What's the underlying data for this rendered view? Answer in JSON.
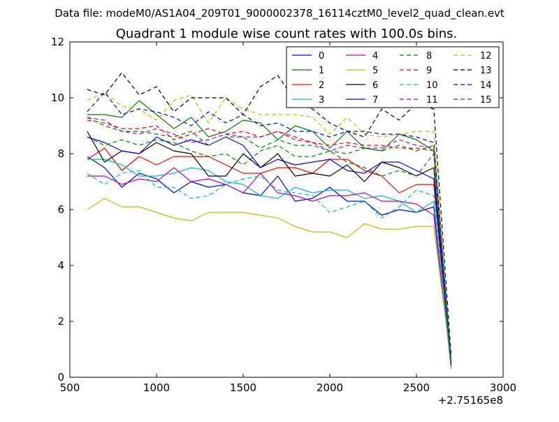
{
  "figure": {
    "suptitle": "Data file: modeM0/AS1A04_209T01_9000002378_16114cztM0_level2_quad_clean.evt",
    "offset_label": "+2.75165e8"
  },
  "chart_data": {
    "type": "line",
    "title": "Quadrant 1 module wise count rates with 100.0s bins.",
    "xlabel": "",
    "ylabel": "",
    "xlim": [
      500,
      3000
    ],
    "ylim": [
      0,
      12
    ],
    "x_ticks": [
      500,
      1000,
      1500,
      2000,
      2500,
      3000
    ],
    "y_ticks": [
      0,
      2,
      4,
      6,
      8,
      10,
      12
    ],
    "x_offset": "+2.75165e8",
    "grid": false,
    "legend_position": "top-right",
    "legend_columns": 4,
    "x": [
      600,
      700,
      800,
      900,
      1000,
      1100,
      1200,
      1300,
      1400,
      1500,
      1600,
      1700,
      1800,
      1900,
      2000,
      2100,
      2200,
      2300,
      2400,
      2500,
      2600,
      2700
    ],
    "series": [
      {
        "name": "0",
        "color": "#0000ff",
        "style": "solid",
        "values": [
          7.9,
          7.5,
          6.8,
          7.3,
          7.1,
          6.6,
          7.0,
          6.8,
          6.9,
          6.6,
          6.5,
          7.2,
          6.3,
          6.4,
          6.8,
          6.3,
          6.3,
          5.8,
          6.0,
          5.9,
          6.1,
          0.4
        ]
      },
      {
        "name": "1",
        "color": "#008000",
        "style": "solid",
        "values": [
          9.4,
          9.4,
          9.3,
          9.9,
          9.4,
          8.9,
          9.3,
          8.6,
          8.8,
          9.2,
          9.1,
          8.5,
          9.0,
          8.8,
          8.2,
          8.8,
          8.2,
          8.1,
          8.7,
          8.5,
          8.1,
          0.6
        ]
      },
      {
        "name": "2",
        "color": "#ff0000",
        "style": "solid",
        "values": [
          7.8,
          8.2,
          7.4,
          7.9,
          7.6,
          7.9,
          7.9,
          7.9,
          7.6,
          7.3,
          7.3,
          7.5,
          7.5,
          7.3,
          7.8,
          7.8,
          7.4,
          7.2,
          6.6,
          6.9,
          6.9,
          0.5
        ]
      },
      {
        "name": "3",
        "color": "#00bfbf",
        "style": "solid",
        "values": [
          7.8,
          7.8,
          7.6,
          7.2,
          7.2,
          7.3,
          7.5,
          7.4,
          7.0,
          6.9,
          6.5,
          6.4,
          6.8,
          6.6,
          6.7,
          6.7,
          6.4,
          6.5,
          6.3,
          5.9,
          6.3,
          0.3
        ]
      },
      {
        "name": "4",
        "color": "#bf00bf",
        "style": "solid",
        "values": [
          7.2,
          7.2,
          6.9,
          7.1,
          7.0,
          7.5,
          7.0,
          7.1,
          6.9,
          6.6,
          7.3,
          6.6,
          6.5,
          6.3,
          6.5,
          6.5,
          6.6,
          6.3,
          6.3,
          6.2,
          5.8,
          0.4
        ]
      },
      {
        "name": "5",
        "color": "#bfbf00",
        "style": "solid",
        "values": [
          6.0,
          6.4,
          6.1,
          6.1,
          5.9,
          5.7,
          5.6,
          5.9,
          5.9,
          5.9,
          5.8,
          5.7,
          5.4,
          5.2,
          5.2,
          5.0,
          5.5,
          5.3,
          5.3,
          5.4,
          5.4,
          0.5
        ]
      },
      {
        "name": "6",
        "color": "#000000",
        "style": "solid",
        "values": [
          8.8,
          7.7,
          8.1,
          8.0,
          8.4,
          8.1,
          8.0,
          7.2,
          7.2,
          8.0,
          7.5,
          8.0,
          7.2,
          7.3,
          7.2,
          7.6,
          7.0,
          7.7,
          7.5,
          7.2,
          7.5,
          0.4
        ]
      },
      {
        "name": "7",
        "color": "#0000ff",
        "style": "solid",
        "values": [
          8.6,
          8.4,
          8.1,
          8.0,
          8.6,
          8.3,
          8.5,
          8.3,
          8.6,
          8.3,
          7.5,
          7.8,
          7.6,
          7.7,
          7.8,
          7.4,
          7.3,
          7.7,
          7.7,
          7.4,
          7.1,
          0.5
        ]
      },
      {
        "name": "8",
        "color": "#008000",
        "style": "dashed",
        "values": [
          8.6,
          8.3,
          8.5,
          8.3,
          8.5,
          8.4,
          8.1,
          7.9,
          8.0,
          7.6,
          8.1,
          8.3,
          7.9,
          7.9,
          8.1,
          7.7,
          7.5,
          7.2,
          7.4,
          7.2,
          8.0,
          0.5
        ]
      },
      {
        "name": "9",
        "color": "#ff0000",
        "style": "dashed",
        "values": [
          9.2,
          9.1,
          8.9,
          8.9,
          9.0,
          8.5,
          8.7,
          8.9,
          8.7,
          8.8,
          8.6,
          8.8,
          8.5,
          8.4,
          8.3,
          8.4,
          8.3,
          8.3,
          8.2,
          8.2,
          8.1,
          0.5
        ]
      },
      {
        "name": "10",
        "color": "#00bfbf",
        "style": "dashed",
        "values": [
          7.3,
          6.9,
          7.3,
          7.4,
          6.8,
          6.8,
          6.4,
          6.5,
          6.9,
          7.1,
          7.2,
          6.7,
          6.6,
          6.5,
          5.9,
          6.1,
          6.3,
          5.7,
          6.1,
          6.7,
          6.5,
          0.3
        ]
      },
      {
        "name": "11",
        "color": "#bf00bf",
        "style": "dashed",
        "values": [
          9.3,
          9.2,
          8.8,
          8.7,
          8.9,
          8.7,
          8.4,
          8.5,
          8.7,
          8.6,
          8.6,
          8.8,
          8.6,
          8.4,
          8.1,
          8.3,
          8.2,
          8.2,
          8.5,
          8.3,
          8.2,
          0.4
        ]
      },
      {
        "name": "12",
        "color": "#bfbf00",
        "style": "dashed",
        "values": [
          9.9,
          10.2,
          9.7,
          9.6,
          9.2,
          9.9,
          10.1,
          9.1,
          10.0,
          9.6,
          9.4,
          9.4,
          9.4,
          9.3,
          8.7,
          9.3,
          8.7,
          8.6,
          8.7,
          8.8,
          8.8,
          0.5
        ]
      },
      {
        "name": "13",
        "color": "#000000",
        "style": "dashed",
        "values": [
          10.3,
          10.1,
          10.9,
          10.1,
          10.4,
          9.5,
          10.0,
          10.0,
          10.0,
          9.4,
          10.4,
          10.8,
          9.9,
          9.6,
          9.1,
          8.8,
          8.6,
          9.6,
          9.2,
          9.8,
          9.6,
          0.8
        ]
      },
      {
        "name": "14",
        "color": "#0000ff",
        "style": "dashed",
        "values": [
          9.5,
          10.2,
          9.4,
          9.6,
          9.5,
          9.3,
          9.0,
          9.5,
          9.1,
          9.4,
          9.0,
          9.1,
          8.8,
          8.8,
          8.6,
          8.8,
          8.8,
          8.7,
          8.7,
          8.6,
          8.4,
          0.5
        ]
      },
      {
        "name": "15",
        "color": "#008000",
        "style": "dashed",
        "values": [
          9.3,
          9.0,
          8.8,
          8.8,
          8.7,
          8.6,
          8.8,
          8.3,
          8.6,
          8.6,
          8.2,
          8.5,
          8.3,
          8.3,
          8.1,
          8.0,
          8.2,
          8.1,
          8.3,
          8.1,
          8.3,
          0.5
        ]
      }
    ]
  }
}
